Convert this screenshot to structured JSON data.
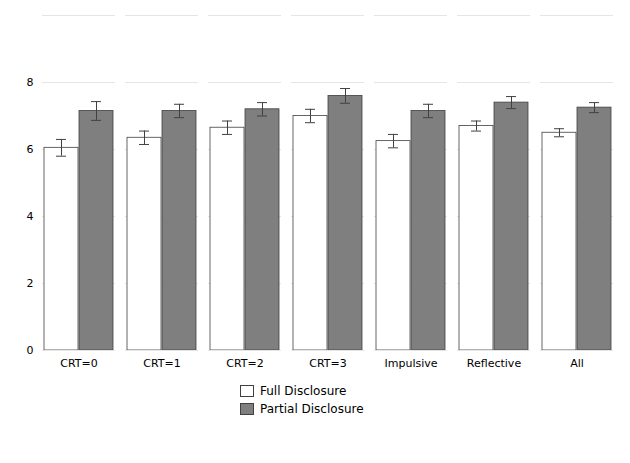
{
  "chart_data": {
    "type": "bar",
    "categories": [
      "CRT=0",
      "CRT=1",
      "CRT=2",
      "CRT=3",
      "Impulsive",
      "Reflective",
      "All"
    ],
    "series": [
      {
        "name": "Full Disclosure",
        "color": "#ffffff",
        "values": [
          6.05,
          6.35,
          6.65,
          7.0,
          6.25,
          6.7,
          6.5
        ],
        "errors": [
          0.25,
          0.2,
          0.2,
          0.2,
          0.2,
          0.15,
          0.12
        ]
      },
      {
        "name": "Partial Disclosure",
        "color": "#7f7f7f",
        "values": [
          7.15,
          7.15,
          7.2,
          7.6,
          7.15,
          7.4,
          7.25
        ],
        "errors": [
          0.28,
          0.2,
          0.2,
          0.22,
          0.2,
          0.18,
          0.15
        ]
      }
    ],
    "ylim": [
      0,
      10
    ],
    "yticks": [
      0,
      2,
      4,
      6,
      8,
      {
        "value": 10,
        "label": ""
      }
    ],
    "grid": true,
    "legend": "bottom"
  }
}
